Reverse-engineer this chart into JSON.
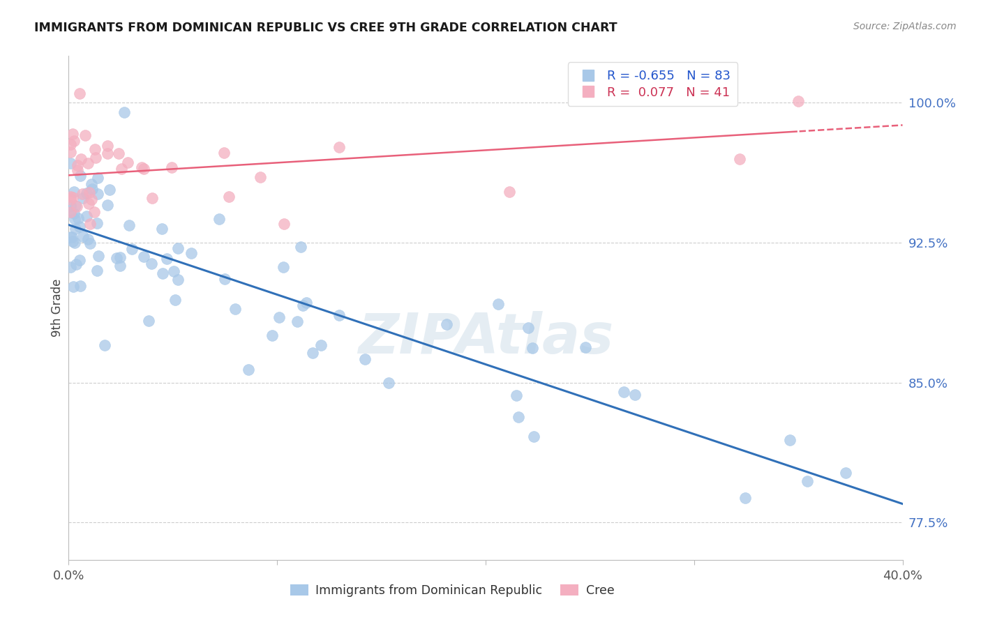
{
  "title": "IMMIGRANTS FROM DOMINICAN REPUBLIC VS CREE 9TH GRADE CORRELATION CHART",
  "source": "Source: ZipAtlas.com",
  "ylabel": "9th Grade",
  "xlim": [
    0.0,
    0.4
  ],
  "ylim": [
    0.755,
    1.025
  ],
  "yticks": [
    0.775,
    0.85,
    0.925,
    1.0
  ],
  "ytick_labels": [
    "77.5%",
    "85.0%",
    "92.5%",
    "100.0%"
  ],
  "blue_R": "-0.655",
  "blue_N": "83",
  "pink_R": "0.077",
  "pink_N": "41",
  "blue_color": "#a8c8e8",
  "pink_color": "#f4afc0",
  "blue_line_color": "#3070b8",
  "pink_line_color": "#e8607a",
  "watermark": "ZIPAtlas",
  "legend_label_blue": "Immigrants from Dominican Republic",
  "legend_label_pink": "Cree",
  "blue_legend_text_color": "#2255cc",
  "pink_legend_text_color": "#cc3355",
  "right_axis_color": "#4472c4"
}
